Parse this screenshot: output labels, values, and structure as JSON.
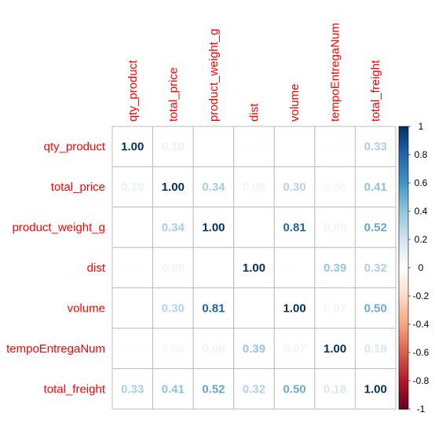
{
  "chart_data": {
    "type": "heatmap",
    "variables": [
      "qty_product",
      "total_price",
      "product_weight_g",
      "dist",
      "volume",
      "tempoEntregaNum",
      "total_freight"
    ],
    "matrix": [
      [
        1.0,
        0.1,
        0.0,
        -0.02,
        0.0,
        -0.02,
        0.33
      ],
      [
        0.1,
        1.0,
        0.34,
        0.08,
        0.3,
        0.06,
        0.41
      ],
      [
        0.0,
        0.34,
        1.0,
        0.01,
        0.81,
        0.08,
        0.52
      ],
      [
        -0.02,
        0.08,
        0.01,
        1.0,
        0.01,
        0.39,
        0.32
      ],
      [
        0.0,
        0.3,
        0.81,
        0.01,
        1.0,
        0.07,
        0.5
      ],
      [
        -0.02,
        0.06,
        0.08,
        0.39,
        0.07,
        1.0,
        0.18
      ],
      [
        0.33,
        0.41,
        0.52,
        0.32,
        0.5,
        0.18,
        1.0
      ]
    ],
    "value_range": [
      -1,
      1
    ],
    "colorbar_ticks": [
      "1",
      "0.8",
      "0.6",
      "0.4",
      "0.2",
      "0",
      "-0.2",
      "-0.4",
      "-0.6",
      "-0.8",
      "-1"
    ],
    "colorbar_tick_values": [
      1,
      0.8,
      0.6,
      0.4,
      0.2,
      0,
      -0.2,
      -0.4,
      -0.6,
      -0.8,
      -1
    ],
    "colors": {
      "negative_end": "#67001f",
      "zero": "#ffffff",
      "positive_end": "#053061",
      "label_color": "#ff0000",
      "grid": "#bebebe"
    },
    "legend_placement": "right"
  }
}
